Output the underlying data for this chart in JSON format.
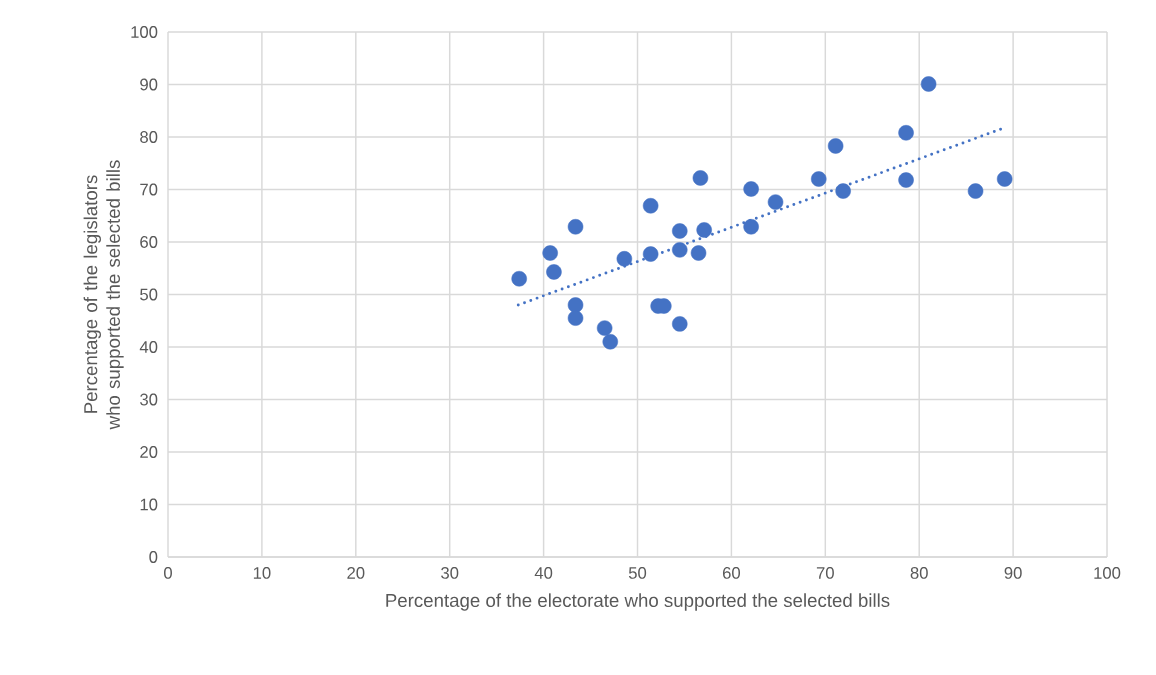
{
  "chart_data": {
    "type": "scatter",
    "xlabel": "Percentage of the electorate who supported the selected bills",
    "ylabel": "Percentage of the legislators who supported the selected bills",
    "xlim": [
      0,
      100
    ],
    "ylim": [
      0,
      100
    ],
    "xticks": [
      0,
      10,
      20,
      30,
      40,
      50,
      60,
      70,
      80,
      90,
      100
    ],
    "yticks": [
      0,
      10,
      20,
      30,
      40,
      50,
      60,
      70,
      80,
      90,
      100
    ],
    "grid": true,
    "legend": false,
    "series": [
      {
        "color": "#4472c4",
        "marker": "circle",
        "x": [
          37.4,
          40.7,
          41.1,
          43.4,
          43.4,
          43.4,
          46.5,
          47.1,
          48.6,
          51.4,
          51.4,
          52.2,
          52.8,
          54.5,
          54.5,
          54.5,
          56.7,
          56.5,
          57.1,
          62.1,
          62.1,
          64.7,
          69.3,
          71.1,
          71.9,
          78.6,
          78.6,
          81.0,
          86.0,
          89.1
        ],
        "values": [
          53.0,
          57.9,
          54.3,
          62.9,
          48.0,
          45.5,
          43.6,
          41.0,
          56.8,
          66.9,
          57.7,
          47.8,
          47.8,
          62.1,
          58.5,
          44.4,
          72.2,
          57.9,
          62.3,
          70.1,
          62.9,
          67.6,
          72.0,
          78.3,
          69.7,
          80.8,
          71.8,
          90.1,
          69.7,
          72.0
        ]
      },
      {
        "type": "line",
        "color": "#4472c4",
        "line_style": "dotted",
        "marker": "none",
        "x": [
          37.3,
          89.0
        ],
        "values": [
          48.0,
          81.7
        ]
      }
    ]
  }
}
